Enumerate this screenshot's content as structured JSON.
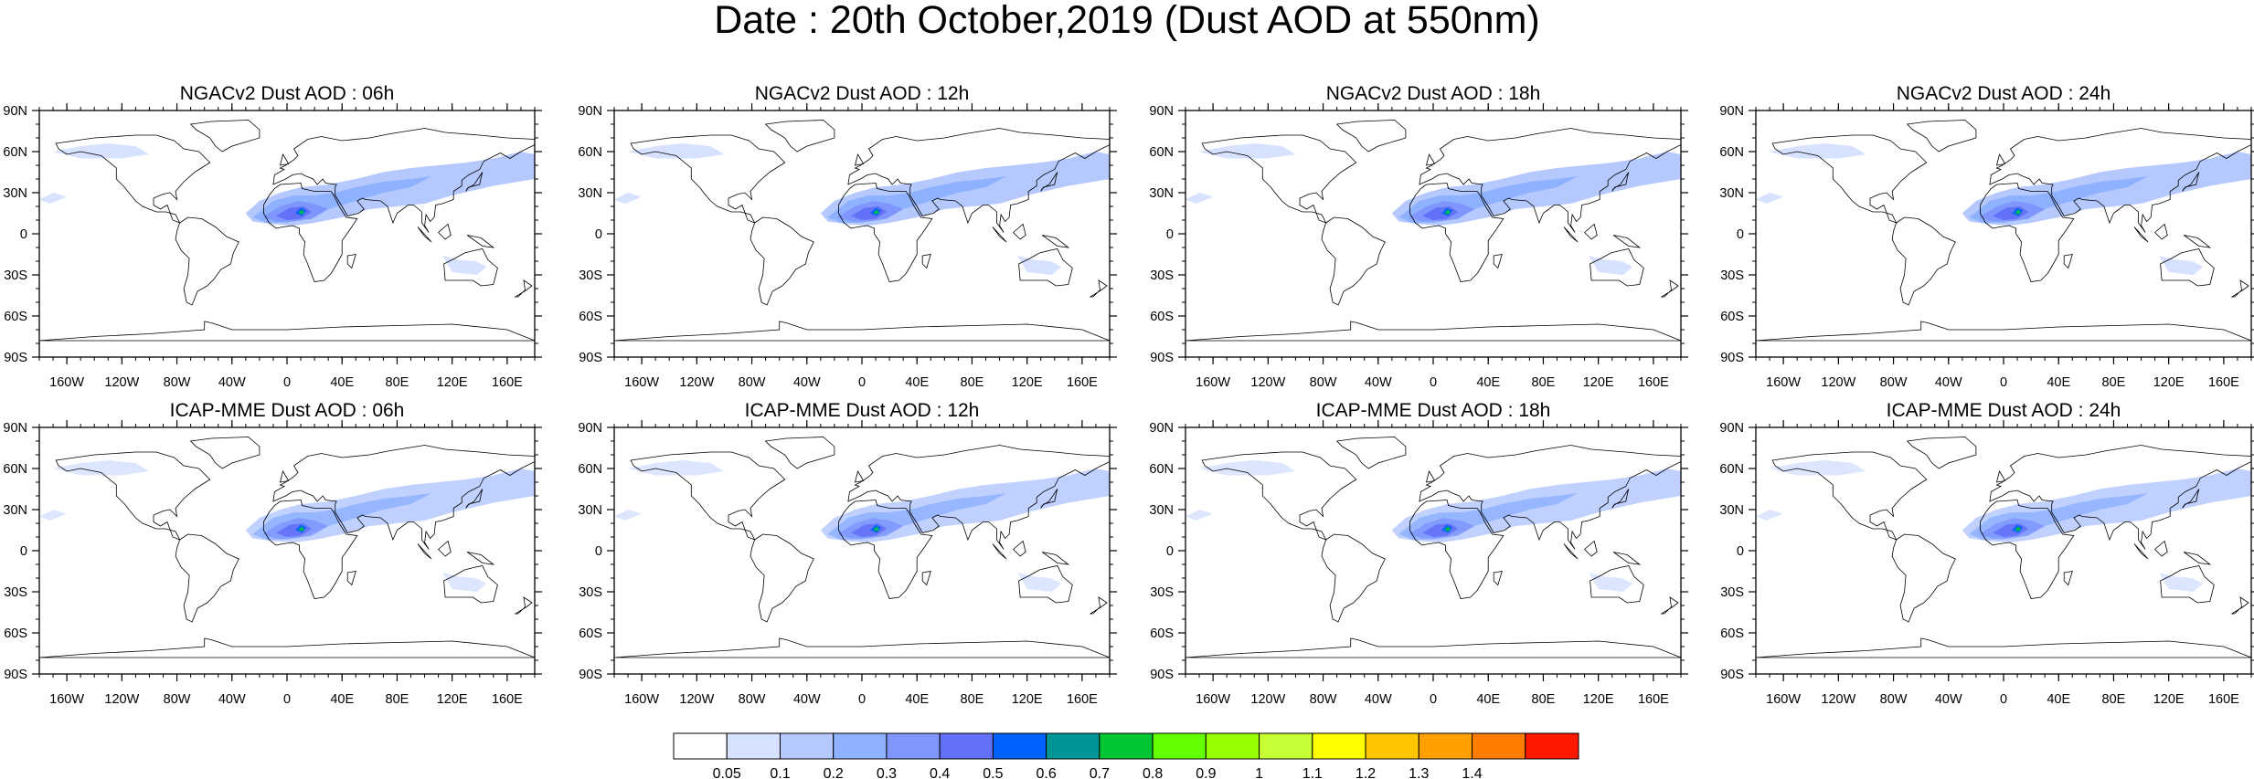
{
  "title": "Date : 20th October,2019 (Dust AOD at 550nm)",
  "chart_data": {
    "type": "heatmap",
    "panels": [
      {
        "title": "NGACv2 Dust AOD : 06h",
        "model": "NGACv2",
        "lead": "06h"
      },
      {
        "title": "NGACv2 Dust AOD : 12h",
        "model": "NGACv2",
        "lead": "12h"
      },
      {
        "title": "NGACv2 Dust AOD : 18h",
        "model": "NGACv2",
        "lead": "18h"
      },
      {
        "title": "NGACv2 Dust AOD : 24h",
        "model": "NGACv2",
        "lead": "24h"
      },
      {
        "title": "ICAP-MME Dust AOD : 06h",
        "model": "ICAP-MME",
        "lead": "06h"
      },
      {
        "title": "ICAP-MME Dust AOD : 12h",
        "model": "ICAP-MME",
        "lead": "12h"
      },
      {
        "title": "ICAP-MME Dust AOD : 18h",
        "model": "ICAP-MME",
        "lead": "18h"
      },
      {
        "title": "ICAP-MME Dust AOD : 24h",
        "model": "ICAP-MME",
        "lead": "24h"
      }
    ],
    "x_ticks": [
      "160W",
      "120W",
      "80W",
      "40W",
      "0",
      "40E",
      "80E",
      "120E",
      "160E"
    ],
    "x_tick_values": [
      -160,
      -120,
      -80,
      -40,
      0,
      40,
      80,
      120,
      160
    ],
    "y_ticks": [
      "90N",
      "60N",
      "30N",
      "0",
      "30S",
      "60S",
      "90S"
    ],
    "y_tick_values": [
      90,
      60,
      30,
      0,
      -30,
      -60,
      -90
    ],
    "xlim": [
      -180,
      180
    ],
    "ylim": [
      -90,
      90
    ],
    "colorbar": {
      "levels": [
        "0.05",
        "0.1",
        "0.2",
        "0.3",
        "0.4",
        "0.5",
        "0.6",
        "0.7",
        "0.8",
        "0.9",
        "1",
        "1.1",
        "1.2",
        "1.3",
        "1.4"
      ],
      "colors": [
        "#ffffff",
        "#d6e2ff",
        "#b5c9ff",
        "#8eb2ff",
        "#7f96ff",
        "#6370f8",
        "#0063ff",
        "#009696",
        "#00c633",
        "#63ff00",
        "#96ff00",
        "#c6ff33",
        "#ffff00",
        "#ffc600",
        "#ffa000",
        "#ff7c00",
        "#ff1900"
      ]
    }
  }
}
